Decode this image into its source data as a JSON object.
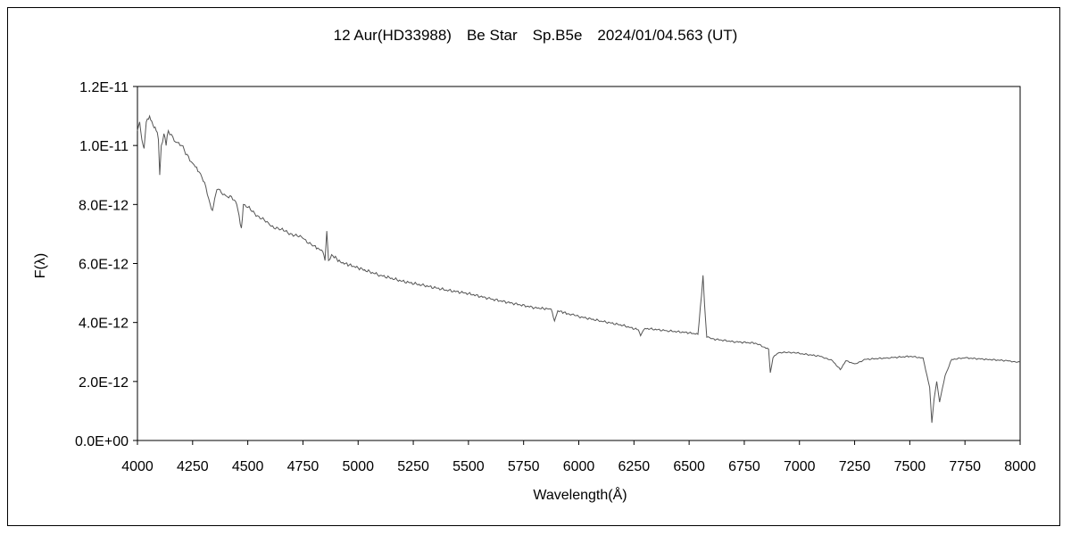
{
  "chart_data": {
    "type": "line",
    "title": "12 Aur(HD33988)　Be Star　Sp.B5e　2024/01/04.563 (UT)",
    "xlabel": "Wavelength(Å)",
    "ylabel": "F(λ)",
    "xlim": [
      4000,
      8000
    ],
    "ylim": [
      0,
      1.2e-11
    ],
    "x_ticks": [
      4000,
      4250,
      4500,
      4750,
      5000,
      5250,
      5500,
      5750,
      6000,
      6250,
      6500,
      6750,
      7000,
      7250,
      7500,
      7750,
      8000
    ],
    "x_tick_labels": [
      "4000",
      "4250",
      "4500",
      "4750",
      "5000",
      "5250",
      "5500",
      "5750",
      "6000",
      "6250",
      "6500",
      "6750",
      "7000",
      "7250",
      "7500",
      "7750",
      "8000"
    ],
    "y_ticks": [
      0,
      2e-12,
      4e-12,
      6e-12,
      8e-12,
      1e-11,
      1.2e-11
    ],
    "y_tick_labels": [
      "0.0E+00",
      "2.0E-12",
      "4.0E-12",
      "6.0E-12",
      "8.0E-12",
      "1.0E-11",
      "1.2E-11"
    ],
    "grid": false,
    "legend": "none",
    "series": [
      {
        "color": "#555555",
        "points": [
          [
            4000,
            1.05e-11
          ],
          [
            4010,
            1.08e-11
          ],
          [
            4020,
            1.02e-11
          ],
          [
            4030,
            9.9e-12
          ],
          [
            4040,
            1.08e-11
          ],
          [
            4055,
            1.1e-11
          ],
          [
            4070,
            1.07e-11
          ],
          [
            4085,
            1.05e-11
          ],
          [
            4095,
            1.02e-11
          ],
          [
            4101,
            9e-12
          ],
          [
            4108,
            1e-11
          ],
          [
            4120,
            1.04e-11
          ],
          [
            4130,
            1e-11
          ],
          [
            4140,
            1.05e-11
          ],
          [
            4160,
            1.03e-11
          ],
          [
            4180,
            1.01e-11
          ],
          [
            4200,
            1e-11
          ],
          [
            4225,
            9.7e-12
          ],
          [
            4250,
            9.4e-12
          ],
          [
            4280,
            9.1e-12
          ],
          [
            4310,
            8.6e-12
          ],
          [
            4330,
            8e-12
          ],
          [
            4340,
            7.8e-12
          ],
          [
            4350,
            8.2e-12
          ],
          [
            4360,
            8.5e-12
          ],
          [
            4380,
            8.4e-12
          ],
          [
            4400,
            8.3e-12
          ],
          [
            4420,
            8.3e-12
          ],
          [
            4450,
            8e-12
          ],
          [
            4471,
            7.2e-12
          ],
          [
            4480,
            8e-12
          ],
          [
            4500,
            7.9e-12
          ],
          [
            4550,
            7.6e-12
          ],
          [
            4600,
            7.3e-12
          ],
          [
            4650,
            7.15e-12
          ],
          [
            4700,
            7e-12
          ],
          [
            4750,
            6.85e-12
          ],
          [
            4800,
            6.6e-12
          ],
          [
            4840,
            6.4e-12
          ],
          [
            4850,
            6.1e-12
          ],
          [
            4858,
            7.1e-12
          ],
          [
            4866,
            6.1e-12
          ],
          [
            4880,
            6.3e-12
          ],
          [
            4920,
            6.05e-12
          ],
          [
            4960,
            5.95e-12
          ],
          [
            5000,
            5.85e-12
          ],
          [
            5100,
            5.6e-12
          ],
          [
            5200,
            5.4e-12
          ],
          [
            5300,
            5.25e-12
          ],
          [
            5400,
            5.1e-12
          ],
          [
            5500,
            4.98e-12
          ],
          [
            5600,
            4.8e-12
          ],
          [
            5700,
            4.65e-12
          ],
          [
            5800,
            4.5e-12
          ],
          [
            5875,
            4.45e-12
          ],
          [
            5890,
            4.05e-12
          ],
          [
            5905,
            4.4e-12
          ],
          [
            5950,
            4.3e-12
          ],
          [
            6000,
            4.2e-12
          ],
          [
            6100,
            4.05e-12
          ],
          [
            6200,
            3.9e-12
          ],
          [
            6270,
            3.75e-12
          ],
          [
            6280,
            3.55e-12
          ],
          [
            6300,
            3.8e-12
          ],
          [
            6400,
            3.72e-12
          ],
          [
            6500,
            3.65e-12
          ],
          [
            6540,
            3.6e-12
          ],
          [
            6556,
            4.9e-12
          ],
          [
            6563,
            5.6e-12
          ],
          [
            6570,
            4.6e-12
          ],
          [
            6580,
            3.5e-12
          ],
          [
            6600,
            3.45e-12
          ],
          [
            6700,
            3.35e-12
          ],
          [
            6800,
            3.3e-12
          ],
          [
            6860,
            3.1e-12
          ],
          [
            6868,
            2.3e-12
          ],
          [
            6880,
            2.8e-12
          ],
          [
            6900,
            2.95e-12
          ],
          [
            6950,
            3e-12
          ],
          [
            7000,
            2.95e-12
          ],
          [
            7100,
            2.85e-12
          ],
          [
            7150,
            2.7e-12
          ],
          [
            7185,
            2.4e-12
          ],
          [
            7210,
            2.7e-12
          ],
          [
            7250,
            2.6e-12
          ],
          [
            7300,
            2.75e-12
          ],
          [
            7400,
            2.8e-12
          ],
          [
            7500,
            2.85e-12
          ],
          [
            7560,
            2.8e-12
          ],
          [
            7590,
            1.8e-12
          ],
          [
            7600,
            6e-13
          ],
          [
            7610,
            1.4e-12
          ],
          [
            7622,
            2e-12
          ],
          [
            7635,
            1.3e-12
          ],
          [
            7660,
            2.2e-12
          ],
          [
            7690,
            2.75e-12
          ],
          [
            7750,
            2.8e-12
          ],
          [
            7850,
            2.75e-12
          ],
          [
            7950,
            2.7e-12
          ],
          [
            8000,
            2.65e-12
          ]
        ]
      }
    ]
  }
}
